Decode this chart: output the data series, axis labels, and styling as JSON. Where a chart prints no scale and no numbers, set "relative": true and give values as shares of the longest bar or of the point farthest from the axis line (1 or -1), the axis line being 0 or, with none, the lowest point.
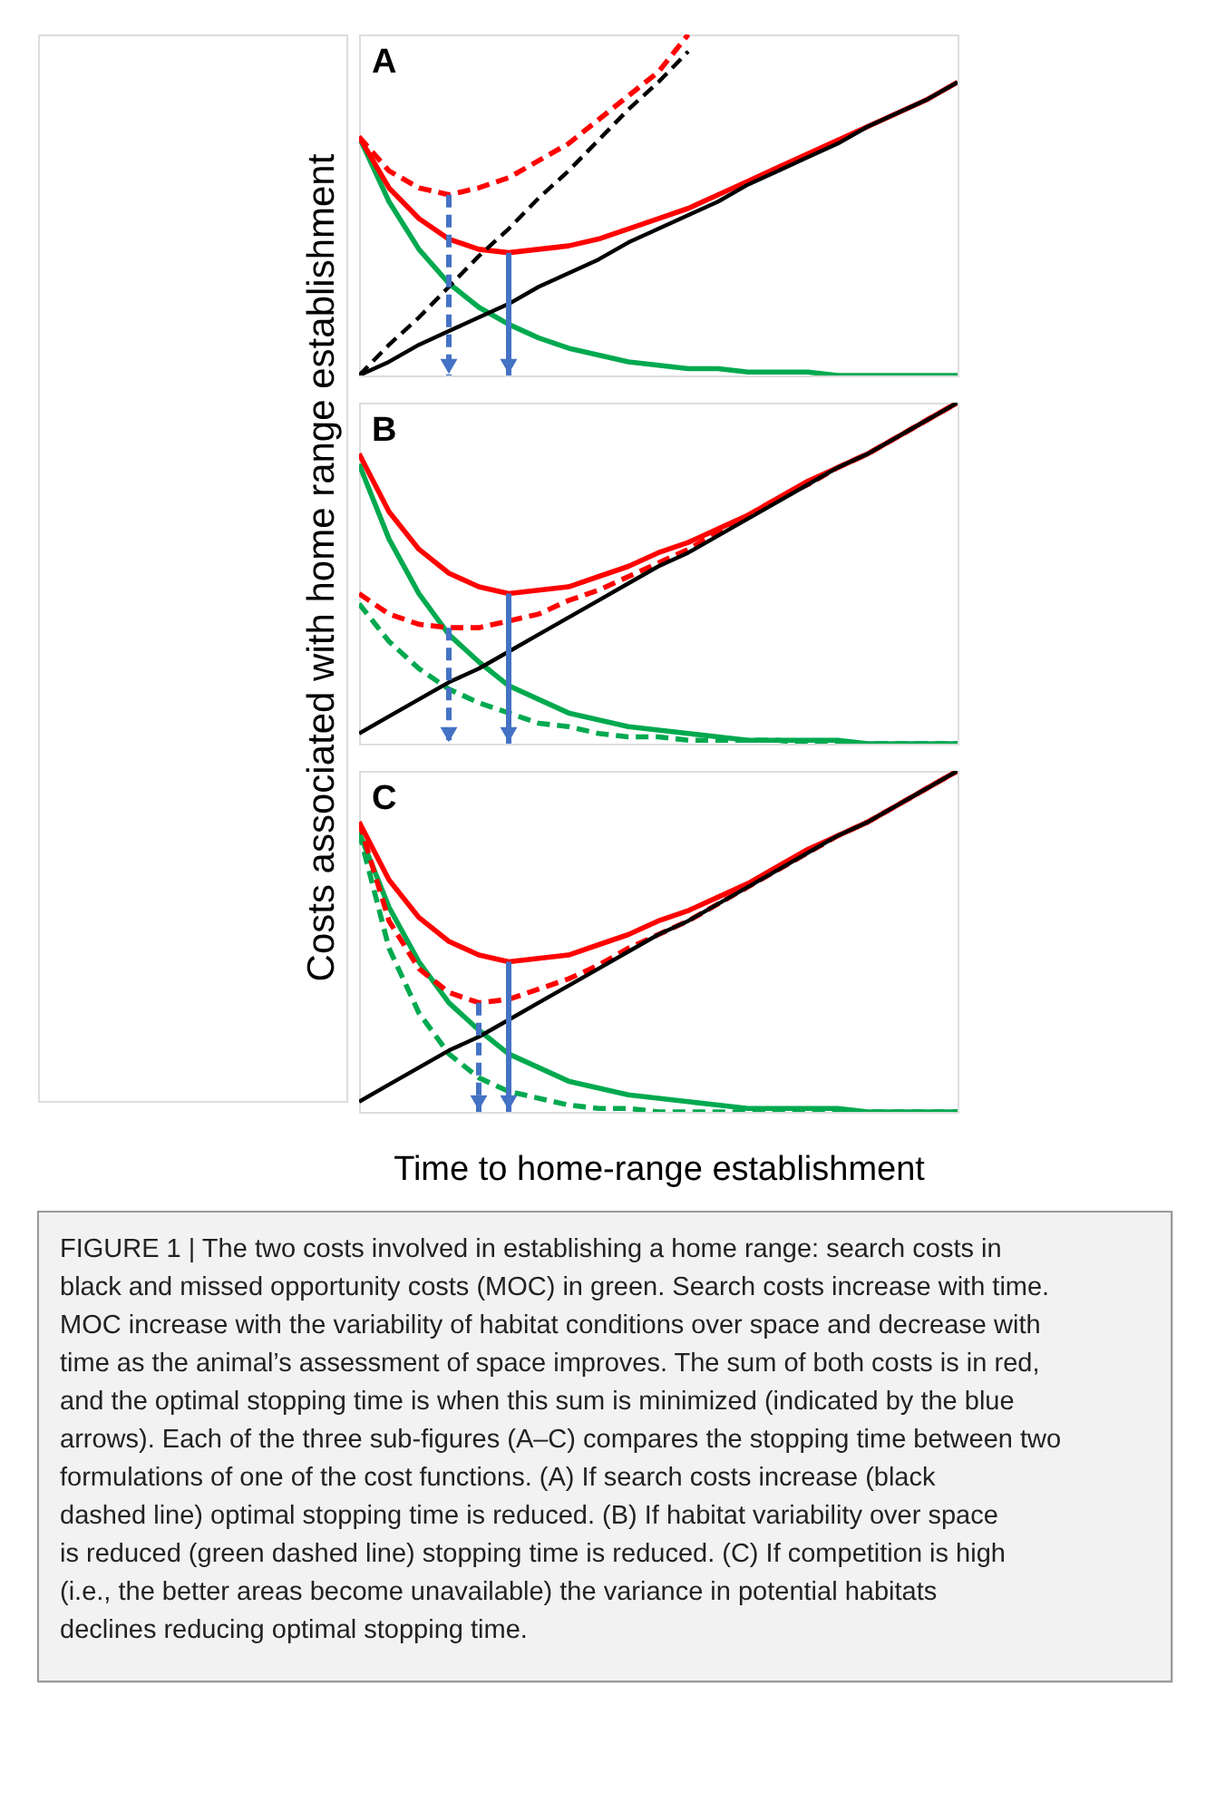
{
  "chart_data": [
    {
      "type": "line",
      "title": "A",
      "relative": true,
      "categories": [
        null,
        null,
        null,
        null,
        null,
        null,
        null,
        null,
        null,
        null,
        null,
        null,
        null,
        null,
        null,
        null,
        null,
        null,
        null,
        null,
        null
      ],
      "series": [
        {
          "color": "#000000",
          "line_style": "solid",
          "values": [
            0,
            0.04,
            0.09,
            0.13,
            0.17,
            0.21,
            0.26,
            0.3,
            0.34,
            0.39,
            0.43,
            0.47,
            0.51,
            0.56,
            0.6,
            0.64,
            0.68,
            0.73,
            0.77,
            0.81,
            0.86
          ]
        },
        {
          "color": "#000000",
          "line_style": "dashed",
          "values": [
            0,
            0.09,
            0.17,
            0.26,
            0.35,
            0.43,
            0.52,
            0.6,
            0.69,
            0.78,
            0.86,
            0.95,
            null,
            null,
            null,
            null,
            null,
            null,
            null,
            null,
            null
          ]
        },
        {
          "color": "#00a94f",
          "line_style": "solid",
          "values": [
            0.7,
            0.51,
            0.37,
            0.27,
            0.2,
            0.15,
            0.11,
            0.08,
            0.06,
            0.04,
            0.03,
            0.02,
            0.02,
            0.01,
            0.01,
            0.01,
            0,
            0,
            0,
            0,
            0
          ]
        },
        {
          "color": "#ff0000",
          "line_style": "solid",
          "values": [
            0.7,
            0.55,
            0.46,
            0.4,
            0.37,
            0.36,
            0.37,
            0.38,
            0.4,
            0.43,
            0.46,
            0.49,
            0.53,
            0.57,
            0.61,
            0.65,
            0.69,
            0.73,
            0.77,
            0.81,
            0.86
          ]
        },
        {
          "color": "#ff0000",
          "line_style": "dashed",
          "values": [
            0.7,
            0.6,
            0.55,
            0.53,
            0.55,
            0.58,
            0.63,
            0.68,
            0.75,
            0.82,
            0.89,
            1.0,
            null,
            null,
            null,
            null,
            null,
            null,
            null,
            null,
            null
          ]
        }
      ]
    },
    {
      "type": "line",
      "title": "B",
      "relative": true,
      "ylabel": "Costs associated with home range establishment",
      "categories": [
        null,
        null,
        null,
        null,
        null,
        null,
        null,
        null,
        null,
        null,
        null,
        null,
        null,
        null,
        null,
        null,
        null,
        null,
        null,
        null,
        null
      ],
      "series": [
        {
          "color": "#000000",
          "line_style": "solid",
          "values": [
            0.03,
            0.08,
            0.13,
            0.18,
            0.22,
            0.27,
            0.32,
            0.37,
            0.42,
            0.47,
            0.52,
            0.56,
            0.61,
            0.66,
            0.71,
            0.76,
            0.81,
            0.85,
            0.9,
            0.95,
            1.0
          ]
        },
        {
          "color": "#00a94f",
          "line_style": "solid",
          "values": [
            0.82,
            0.6,
            0.44,
            0.32,
            0.24,
            0.17,
            0.13,
            0.09,
            0.07,
            0.05,
            0.04,
            0.03,
            0.02,
            0.01,
            0.01,
            0.01,
            0.01,
            0,
            0,
            0,
            0
          ]
        },
        {
          "color": "#00a94f",
          "line_style": "dashed",
          "values": [
            0.41,
            0.3,
            0.22,
            0.16,
            0.12,
            0.09,
            0.06,
            0.05,
            0.03,
            0.02,
            0.02,
            0.01,
            0.01,
            0.01,
            0.01,
            0,
            0,
            0,
            0,
            0,
            0
          ]
        },
        {
          "color": "#ff0000",
          "line_style": "solid",
          "values": [
            0.85,
            0.68,
            0.57,
            0.5,
            0.46,
            0.44,
            0.45,
            0.46,
            0.49,
            0.52,
            0.56,
            0.59,
            0.63,
            0.67,
            0.72,
            0.77,
            0.81,
            0.85,
            0.9,
            0.95,
            1.0
          ]
        },
        {
          "color": "#ff0000",
          "line_style": "dashed",
          "values": [
            0.44,
            0.38,
            0.35,
            0.34,
            0.34,
            0.36,
            0.38,
            0.42,
            0.45,
            0.49,
            0.53,
            0.57,
            0.62,
            0.67,
            0.72,
            0.76,
            0.81,
            0.85,
            0.9,
            0.95,
            1.0
          ]
        }
      ]
    },
    {
      "type": "line",
      "title": "C",
      "relative": true,
      "xlabel": "Time to home-range establishment",
      "categories": [
        null,
        null,
        null,
        null,
        null,
        null,
        null,
        null,
        null,
        null,
        null,
        null,
        null,
        null,
        null,
        null,
        null,
        null,
        null,
        null,
        null
      ],
      "series": [
        {
          "color": "#000000",
          "line_style": "solid",
          "values": [
            0.03,
            0.08,
            0.13,
            0.18,
            0.22,
            0.27,
            0.32,
            0.37,
            0.42,
            0.47,
            0.52,
            0.56,
            0.61,
            0.66,
            0.71,
            0.76,
            0.81,
            0.85,
            0.9,
            0.95,
            1.0
          ]
        },
        {
          "color": "#00a94f",
          "line_style": "solid",
          "values": [
            0.82,
            0.6,
            0.44,
            0.32,
            0.24,
            0.17,
            0.13,
            0.09,
            0.07,
            0.05,
            0.04,
            0.03,
            0.02,
            0.01,
            0.01,
            0.01,
            0.01,
            0,
            0,
            0,
            0
          ]
        },
        {
          "color": "#00a94f",
          "line_style": "dashed",
          "values": [
            0.82,
            0.48,
            0.29,
            0.17,
            0.1,
            0.06,
            0.04,
            0.02,
            0.01,
            0.01,
            0,
            0,
            0,
            0,
            0,
            0,
            0,
            0,
            0,
            0,
            0
          ]
        },
        {
          "color": "#ff0000",
          "line_style": "solid",
          "values": [
            0.85,
            0.68,
            0.57,
            0.5,
            0.46,
            0.44,
            0.45,
            0.46,
            0.49,
            0.52,
            0.56,
            0.59,
            0.63,
            0.67,
            0.72,
            0.77,
            0.81,
            0.85,
            0.9,
            0.95,
            1.0
          ]
        },
        {
          "color": "#ff0000",
          "line_style": "dashed",
          "values": [
            0.85,
            0.56,
            0.42,
            0.35,
            0.32,
            0.33,
            0.36,
            0.39,
            0.43,
            0.48,
            0.52,
            0.56,
            0.61,
            0.66,
            0.71,
            0.76,
            0.81,
            0.85,
            0.9,
            0.95,
            1.0
          ]
        }
      ],
      "annotations": [
        "FIGURE 1 | The two costs involved in establishing a home range: search costs in black and missed opportunity costs (MOC) in green. Search costs increase with time. MOC increase with the variability of habitat conditions over space and decrease with time as the animal’s assessment of space improves. The sum of both costs is in red, and the optimal stopping time is when this sum is minimized (indicated by the blue arrows). Each of the three sub-figures (A–C) compares the stopping time between two formulations of one of the cost functions. (A) If search costs increase (black dashed line) optimal stopping time is reduced. (B) If habitat variability over space is reduced (green dashed line) stopping time is reduced. (C) If competition is high (i.e., the better areas become unavailable) the variance in potential habitats declines reducing optimal stopping time."
      ]
    }
  ]
}
